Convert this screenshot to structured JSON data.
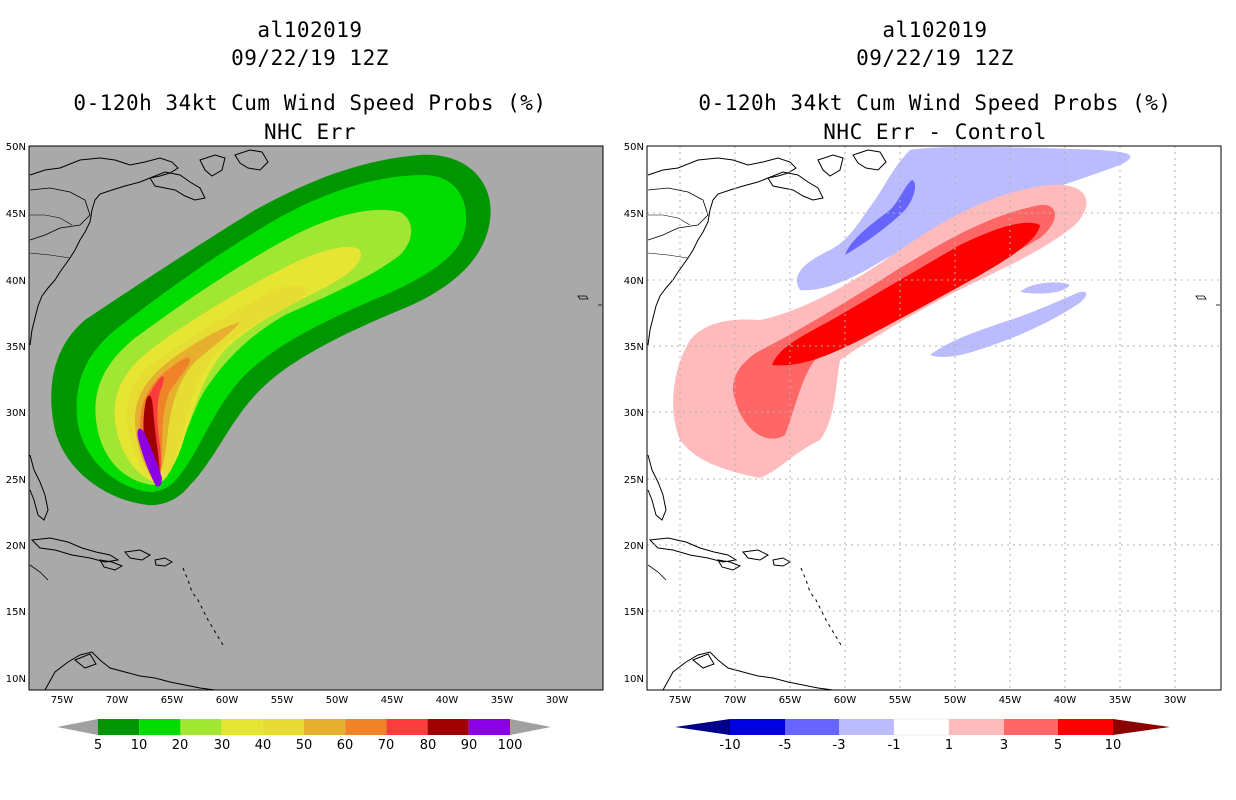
{
  "panels": [
    {
      "storm_id": "al102019",
      "datetime": "09/22/19 12Z",
      "product": "0-120h 34kt Cum Wind Speed Probs (%)",
      "subtitle": "NHC Err",
      "colorbar": {
        "colors": [
          "#009600",
          "#00dc00",
          "#a0e632",
          "#e6e632",
          "#e6dc32",
          "#e6af2d",
          "#f08228",
          "#fa3c3c",
          "#a00000",
          "#8c00e6"
        ],
        "labels": [
          "5",
          "10",
          "20",
          "30",
          "40",
          "50",
          "60",
          "70",
          "80",
          "90",
          "100"
        ],
        "arrow_color": "#a0a0a0"
      }
    },
    {
      "storm_id": "al102019",
      "datetime": "09/22/19 12Z",
      "product": "0-120h 34kt Cum Wind Speed Probs (%)",
      "subtitle": "NHC Err - Control",
      "colorbar": {
        "colors": [
          "#0000e0",
          "#6666ff",
          "#bbbbff",
          "#ffffff",
          "#ffbbbb",
          "#ff6666",
          "#ff0000"
        ],
        "labels": [
          "-10",
          "-5",
          "-3",
          "-1",
          "1",
          "3",
          "5",
          "10"
        ],
        "arrow_low": "#00008c",
        "arrow_high": "#8c0000"
      }
    }
  ],
  "map": {
    "lat_labels": [
      "50N",
      "45N",
      "40N",
      "35N",
      "30N",
      "25N",
      "20N",
      "15N",
      "10N"
    ],
    "lon_labels": [
      "75W",
      "70W",
      "65W",
      "60W",
      "55W",
      "50W",
      "45W",
      "40W",
      "35W",
      "30W"
    ]
  },
  "left_field": {
    "bg": "#a9a9a9",
    "levels": [
      {
        "min": 5,
        "color": "#009600"
      },
      {
        "min": 10,
        "color": "#00dc00"
      },
      {
        "min": 20,
        "color": "#a0e632"
      },
      {
        "min": 30,
        "color": "#e6e632"
      },
      {
        "min": 40,
        "color": "#e6dc32"
      },
      {
        "min": 50,
        "color": "#e6af2d"
      },
      {
        "min": 60,
        "color": "#f08228"
      },
      {
        "min": 70,
        "color": "#fa3c3c"
      },
      {
        "min": 80,
        "color": "#a00000"
      },
      {
        "min": 90,
        "color": "#8c00e6"
      }
    ]
  },
  "right_field": {
    "levels": [
      {
        "label": "-3 to -1",
        "color": "#bbbbff"
      },
      {
        "label": "-5 to -3",
        "color": "#6666ff"
      },
      {
        "label": "1 to 3",
        "color": "#ffbbbb"
      },
      {
        "label": "3 to 5",
        "color": "#ff6666"
      },
      {
        "label": "5 to 10",
        "color": "#ff0000"
      }
    ]
  }
}
